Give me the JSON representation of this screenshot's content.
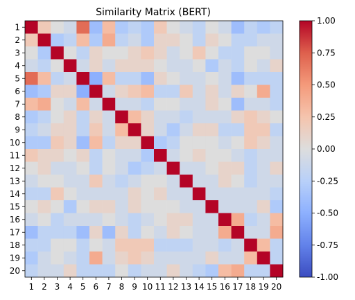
{
  "chart_data": {
    "type": "heatmap",
    "title": "Similarity Matrix (BERT)",
    "xlabel": "",
    "ylabel": "",
    "x_ticks": [
      "1",
      "2",
      "3",
      "4",
      "5",
      "6",
      "7",
      "8",
      "9",
      "10",
      "11",
      "12",
      "13",
      "14",
      "15",
      "16",
      "17",
      "18",
      "19",
      "20"
    ],
    "y_ticks": [
      "1",
      "2",
      "3",
      "4",
      "5",
      "6",
      "7",
      "8",
      "9",
      "10",
      "11",
      "12",
      "13",
      "14",
      "15",
      "16",
      "17",
      "18",
      "19",
      "20"
    ],
    "colorscale": "coolwarm",
    "vmin": -1.0,
    "vmax": 1.0,
    "colorbar_ticks": [
      "1.00",
      "0.75",
      "0.50",
      "0.25",
      "0.00",
      "-0.25",
      "-0.50",
      "-0.75",
      "-1.00"
    ],
    "colorbar_tick_values": [
      1.0,
      0.75,
      0.5,
      0.25,
      0.0,
      -0.25,
      -0.5,
      -0.75,
      -1.0
    ],
    "values": [
      [
        1.0,
        0.2,
        0.0,
        -0.1,
        0.7,
        -0.4,
        0.3,
        -0.3,
        -0.2,
        -0.3,
        0.2,
        0.0,
        -0.1,
        -0.2,
        0.0,
        -0.1,
        -0.4,
        -0.2,
        -0.3,
        -0.2
      ],
      [
        0.2,
        1.0,
        -0.3,
        -0.2,
        0.3,
        -0.3,
        0.4,
        -0.2,
        -0.1,
        -0.3,
        0.1,
        0.1,
        0.0,
        -0.2,
        0.1,
        0.0,
        -0.2,
        -0.2,
        -0.1,
        -0.1
      ],
      [
        0.0,
        -0.3,
        1.0,
        0.0,
        -0.2,
        0.1,
        0.0,
        0.0,
        0.1,
        0.2,
        0.1,
        -0.1,
        0.0,
        0.2,
        0.0,
        -0.2,
        -0.2,
        0.0,
        0.0,
        -0.1
      ],
      [
        -0.1,
        -0.2,
        0.0,
        1.0,
        -0.1,
        0.1,
        -0.1,
        0.1,
        0.1,
        0.1,
        0.0,
        -0.1,
        -0.1,
        0.0,
        -0.3,
        -0.1,
        -0.2,
        0.0,
        -0.1,
        0.1
      ],
      [
        0.7,
        0.3,
        -0.2,
        -0.1,
        1.0,
        -0.5,
        0.3,
        -0.2,
        -0.2,
        -0.4,
        0.1,
        0.0,
        -0.1,
        -0.1,
        0.0,
        -0.1,
        -0.4,
        -0.2,
        -0.2,
        -0.2
      ],
      [
        -0.4,
        -0.3,
        0.1,
        0.1,
        -0.5,
        1.0,
        -0.1,
        0.1,
        0.2,
        0.3,
        -0.2,
        -0.2,
        0.2,
        -0.1,
        0.1,
        -0.1,
        0.1,
        0.0,
        0.4,
        -0.2
      ],
      [
        0.3,
        0.4,
        0.0,
        -0.1,
        0.3,
        -0.1,
        1.0,
        -0.1,
        -0.1,
        -0.2,
        0.0,
        0.0,
        -0.1,
        -0.1,
        0.1,
        0.0,
        -0.4,
        -0.1,
        -0.1,
        -0.2
      ],
      [
        -0.3,
        -0.2,
        0.0,
        0.1,
        -0.2,
        0.1,
        -0.1,
        1.0,
        0.3,
        0.1,
        -0.1,
        -0.1,
        -0.2,
        -0.1,
        -0.1,
        -0.1,
        0.1,
        0.2,
        0.1,
        0.0
      ],
      [
        -0.2,
        -0.1,
        0.1,
        0.1,
        -0.2,
        0.2,
        -0.1,
        0.3,
        1.0,
        0.1,
        -0.1,
        -0.3,
        -0.1,
        0.1,
        0.1,
        -0.2,
        -0.2,
        0.2,
        0.2,
        -0.2
      ],
      [
        -0.3,
        -0.3,
        0.2,
        0.1,
        -0.4,
        0.3,
        -0.2,
        0.1,
        0.1,
        1.0,
        -0.3,
        -0.2,
        0.0,
        0.0,
        0.0,
        -0.1,
        0.0,
        0.2,
        0.1,
        -0.1
      ],
      [
        0.2,
        0.1,
        0.1,
        0.0,
        0.1,
        -0.2,
        0.0,
        -0.1,
        -0.1,
        -0.3,
        1.0,
        -0.1,
        0.0,
        0.1,
        0.0,
        0.0,
        -0.1,
        -0.2,
        -0.1,
        -0.1
      ],
      [
        0.0,
        0.1,
        -0.1,
        -0.1,
        0.0,
        -0.2,
        0.0,
        -0.1,
        -0.3,
        -0.2,
        -0.1,
        1.0,
        -0.1,
        -0.1,
        0.0,
        0.1,
        0.1,
        -0.2,
        -0.1,
        0.1
      ],
      [
        -0.1,
        0.0,
        0.0,
        -0.1,
        -0.1,
        0.2,
        -0.1,
        -0.2,
        -0.1,
        0.0,
        0.0,
        -0.1,
        1.0,
        -0.1,
        -0.1,
        0.1,
        0.0,
        -0.2,
        -0.1,
        -0.1
      ],
      [
        -0.2,
        -0.2,
        0.2,
        0.0,
        -0.1,
        -0.1,
        -0.1,
        -0.1,
        0.1,
        0.0,
        0.1,
        -0.1,
        -0.1,
        1.0,
        -0.1,
        -0.1,
        -0.1,
        -0.1,
        -0.1,
        -0.2
      ],
      [
        0.0,
        0.1,
        0.0,
        -0.3,
        0.0,
        0.1,
        0.1,
        -0.1,
        0.1,
        0.0,
        0.0,
        0.0,
        -0.1,
        -0.1,
        1.0,
        -0.1,
        -0.1,
        -0.1,
        0.1,
        -0.3
      ],
      [
        -0.1,
        0.0,
        -0.2,
        -0.1,
        -0.1,
        -0.1,
        0.0,
        -0.1,
        -0.2,
        -0.1,
        0.0,
        0.1,
        0.1,
        -0.1,
        -0.1,
        1.0,
        0.4,
        -0.2,
        -0.1,
        0.3
      ],
      [
        -0.4,
        -0.2,
        -0.2,
        -0.2,
        -0.4,
        0.1,
        -0.4,
        0.1,
        -0.2,
        0.0,
        -0.1,
        0.1,
        0.0,
        -0.1,
        -0.1,
        0.4,
        1.0,
        -0.1,
        -0.1,
        0.4
      ],
      [
        -0.2,
        -0.2,
        0.0,
        0.0,
        -0.2,
        0.0,
        -0.1,
        0.2,
        0.2,
        0.2,
        -0.2,
        -0.2,
        -0.2,
        -0.1,
        -0.1,
        -0.2,
        -0.1,
        1.0,
        0.3,
        -0.2
      ],
      [
        -0.3,
        -0.1,
        0.0,
        -0.1,
        -0.2,
        0.4,
        -0.1,
        0.1,
        0.2,
        0.1,
        -0.1,
        -0.1,
        -0.1,
        -0.1,
        0.1,
        -0.1,
        -0.1,
        0.3,
        1.0,
        -0.2
      ],
      [
        -0.2,
        -0.1,
        -0.1,
        0.1,
        -0.2,
        -0.2,
        -0.2,
        0.0,
        -0.2,
        -0.1,
        -0.1,
        0.1,
        -0.1,
        -0.2,
        -0.3,
        0.3,
        0.4,
        -0.2,
        -0.2,
        1.0
      ]
    ]
  }
}
